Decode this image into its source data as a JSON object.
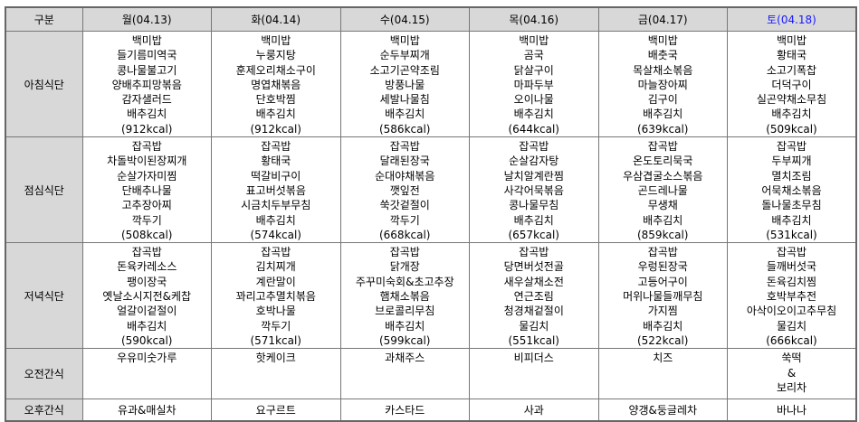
{
  "header": {
    "category_label": "구분",
    "days": [
      "월(04.13)",
      "화(04.14)",
      "수(04.15)",
      "목(04.16)",
      "금(04.17)",
      "토(04.18)"
    ],
    "saturday_color": "#1a1aff"
  },
  "rows": {
    "breakfast": {
      "label": "아침식단",
      "cells": [
        {
          "items": [
            "백미밥",
            "들기름미역국",
            "콩나물불고기",
            "양배추피망볶음",
            "감자샐러드",
            "배추김치"
          ],
          "kcal": "(912kcal)"
        },
        {
          "items": [
            "백미밥",
            "누룽지탕",
            "훈제오리채소구이",
            "명엽채볶음",
            "단호박찜",
            "배추김치"
          ],
          "kcal": "(912kcal)"
        },
        {
          "items": [
            "백미밥",
            "순두부찌개",
            "소고기곤약조림",
            "방풍나물",
            "세발나물침",
            "배추김치"
          ],
          "kcal": "(586kcal)"
        },
        {
          "items": [
            "백미밥",
            "곰국",
            "닭살구이",
            "마파두부",
            "오이나물",
            "배추김치"
          ],
          "kcal": "(644kcal)"
        },
        {
          "items": [
            "백미밥",
            "배춧국",
            "목살채소볶음",
            "마늘장아찌",
            "김구이",
            "배추김치"
          ],
          "kcal": "(639kcal)"
        },
        {
          "items": [
            "백미밥",
            "황태국",
            "소고기폭찹",
            "더덕구이",
            "실곤약채소무침",
            "배추김치"
          ],
          "kcal": "(509kcal)"
        }
      ]
    },
    "lunch": {
      "label": "점심식단",
      "cells": [
        {
          "items": [
            "잡곡밥",
            "차돌박이된장찌개",
            "순살가자미찜",
            "단배추나물",
            "고추장아찌",
            "깍두기"
          ],
          "kcal": "(508kcal)"
        },
        {
          "items": [
            "잡곡밥",
            "황태국",
            "떡갈비구이",
            "표고버섯볶음",
            "시금치두부무침",
            "배추김치"
          ],
          "kcal": "(574kcal)"
        },
        {
          "items": [
            "잡곡밥",
            "달래된장국",
            "순대야채볶음",
            "깻잎전",
            "쑥갓겉절이",
            "깍두기"
          ],
          "kcal": "(668kcal)"
        },
        {
          "items": [
            "잡곡밥",
            "순살감자탕",
            "날치알계란찜",
            "사각어묵볶음",
            "콩나물무침",
            "배추김치"
          ],
          "kcal": "(657kcal)"
        },
        {
          "items": [
            "잡곡밥",
            "온도토리묵국",
            "우삼겹굴소스볶음",
            "곤드레나물",
            "무생채",
            "배추김치"
          ],
          "kcal": "(859kcal)"
        },
        {
          "items": [
            "잡곡밥",
            "두부찌개",
            "멸치조림",
            "어묵채소볶음",
            "돌나물초무침",
            "배추김치"
          ],
          "kcal": "(531kcal)"
        }
      ]
    },
    "dinner": {
      "label": "저녁식단",
      "cells": [
        {
          "items": [
            "잡곡밥",
            "돈육카레소스",
            "팽이장국",
            "옛날소시지전&케찹",
            "얼갈이겉절이",
            "배추김치"
          ],
          "kcal": "(590kcal)"
        },
        {
          "items": [
            "잡곡밥",
            "김치찌개",
            "계란말이",
            "꽈리고추멸치볶음",
            "호박나물",
            "깍두기"
          ],
          "kcal": "(571kcal)"
        },
        {
          "items": [
            "잡곡밥",
            "닭개장",
            "주꾸미숙회&초고추장",
            "햄채소볶음",
            "브로콜리무침",
            "배추김치"
          ],
          "kcal": "(599kcal)"
        },
        {
          "items": [
            "잡곡밥",
            "당면버섯전골",
            "새우살채소전",
            "연근조림",
            "청경채겉절이",
            "물김치"
          ],
          "kcal": "(551kcal)"
        },
        {
          "items": [
            "잡곡밥",
            "우렁된장국",
            "고등어구이",
            "머위나물들깨무침",
            "가지찜",
            "배추김치"
          ],
          "kcal": "(522kcal)"
        },
        {
          "items": [
            "잡곡밥",
            "들깨버섯국",
            "돈육김치찜",
            "호박부추전",
            "아삭이오이고추무침",
            "물김치"
          ],
          "kcal": "(666kcal)"
        }
      ]
    },
    "morning_snack": {
      "label": "오전간식",
      "cells": [
        {
          "items": [
            "우유미숫가루"
          ]
        },
        {
          "items": [
            "핫케이크"
          ]
        },
        {
          "items": [
            "과채주스"
          ]
        },
        {
          "items": [
            "비피더스"
          ]
        },
        {
          "items": [
            "치즈"
          ]
        },
        {
          "items": [
            "쑥떡",
            "&",
            "보리차"
          ]
        }
      ]
    },
    "afternoon_snack": {
      "label": "오후간식",
      "cells": [
        {
          "items": [
            "유과&매실차"
          ]
        },
        {
          "items": [
            "요구르트"
          ]
        },
        {
          "items": [
            "카스타드"
          ]
        },
        {
          "items": [
            "사과"
          ]
        },
        {
          "items": [
            "양갱&둥글레차"
          ]
        },
        {
          "items": [
            "바나나"
          ]
        }
      ]
    }
  }
}
